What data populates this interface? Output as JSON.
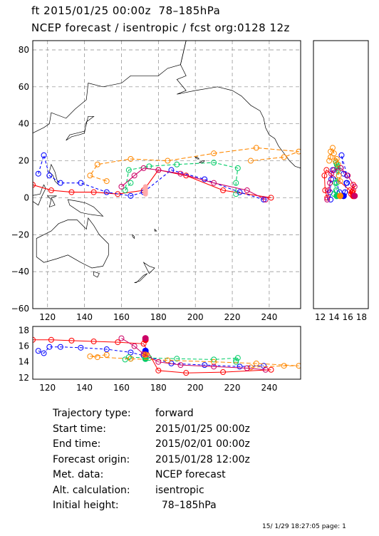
{
  "title": {
    "line1": "ft 2015/01/25 00:00z  78–185hPa",
    "line2": "NCEP forecast / isentropic / fcst org:0128 12z"
  },
  "map": {
    "lon_ticks": [
      "120",
      "140",
      "160",
      "180",
      "200",
      "220",
      "240"
    ],
    "lat_ticks": [
      "80",
      "60",
      "40",
      "20",
      "0",
      "−20",
      "−40",
      "−60"
    ],
    "lon_range": [
      112,
      257
    ],
    "lat_range": [
      -60,
      85
    ]
  },
  "side_panel": {
    "x_ticks": [
      "12",
      "14",
      "16",
      "18"
    ],
    "x_range": [
      11,
      19
    ]
  },
  "bottom_panel": {
    "y_ticks": [
      "18",
      "16",
      "14",
      "12"
    ],
    "y_range": [
      11.8,
      18.5
    ]
  },
  "colors": {
    "red": "#ff0000",
    "blue": "#0000ff",
    "green": "#00cc66",
    "orange": "#ff8800",
    "magenta": "#cc0066",
    "pink": "#ffaaaa",
    "grid": "#888888"
  },
  "trajectories": [
    {
      "color": "red",
      "dash": "",
      "points": [
        [
          112,
          7
        ],
        [
          122,
          4
        ],
        [
          133,
          3
        ],
        [
          145,
          3
        ],
        [
          158,
          2
        ],
        [
          172,
          4
        ],
        [
          180,
          15
        ],
        [
          195,
          12
        ],
        [
          215,
          4
        ],
        [
          241,
          0
        ]
      ],
      "z": [
        16.8,
        16.8,
        16.7,
        16.6,
        16.5,
        16.3,
        12.9,
        12.6,
        12.7,
        13.0
      ]
    },
    {
      "color": "blue",
      "dash": "4,3",
      "points": [
        [
          115,
          13
        ],
        [
          118,
          23
        ],
        [
          121,
          12
        ],
        [
          127,
          8
        ],
        [
          138,
          8
        ],
        [
          152,
          3
        ],
        [
          165,
          1
        ],
        [
          172,
          3
        ],
        [
          187,
          15
        ],
        [
          205,
          10
        ],
        [
          224,
          3
        ],
        [
          237,
          -1
        ]
      ],
      "z": [
        15.4,
        15.1,
        15.9,
        15.9,
        15.8,
        15.6,
        15.2,
        14.8,
        13.8,
        13.6,
        13.4,
        13.5
      ]
    },
    {
      "color": "green",
      "dash": "5,3",
      "points": [
        [
          165,
          8
        ],
        [
          162,
          4
        ],
        [
          164,
          15
        ],
        [
          175,
          17
        ],
        [
          190,
          18
        ],
        [
          210,
          19
        ],
        [
          223,
          16
        ],
        [
          222,
          8
        ],
        [
          222,
          2
        ]
      ],
      "z": [
        14.4,
        14.3,
        14.6,
        14.5,
        14.4,
        14.3,
        14.5,
        14.2,
        14.0
      ]
    },
    {
      "color": "orange",
      "dash": "6,3",
      "points": [
        [
          152,
          9
        ],
        [
          143,
          12
        ],
        [
          147,
          18
        ],
        [
          165,
          21
        ],
        [
          185,
          20
        ],
        [
          210,
          24
        ],
        [
          233,
          27
        ],
        [
          256,
          25
        ],
        [
          248,
          22
        ],
        [
          230,
          20
        ]
      ],
      "z": [
        14.9,
        14.7,
        14.6,
        14.4,
        14.2,
        14.0,
        13.8,
        13.5,
        13.5,
        13.3
      ]
    },
    {
      "color": "magenta",
      "dash": "",
      "points": [
        [
          160,
          6
        ],
        [
          167,
          12
        ],
        [
          172,
          16
        ],
        [
          180,
          15
        ],
        [
          192,
          13
        ],
        [
          210,
          8
        ],
        [
          228,
          4
        ],
        [
          238,
          -1
        ]
      ],
      "z": [
        17.0,
        16.0,
        15.0,
        14.0,
        13.6,
        13.4,
        13.2,
        13.0
      ]
    }
  ],
  "info": [
    {
      "label": "Trajectory type:",
      "value": "forward"
    },
    {
      "label": "Start time:",
      "value": "2015/01/25 00:00z"
    },
    {
      "label": "End time:",
      "value": "2015/02/01 00:00z"
    },
    {
      "label": "Forecast origin:",
      "value": "2015/01/28 12:00z"
    },
    {
      "label": "Met. data:",
      "value": "NCEP forecast"
    },
    {
      "label": "Alt. calculation:",
      "value": "isentropic"
    },
    {
      "label": "Initial height:",
      "value": "  78–185hPa"
    }
  ],
  "footer": "15/ 1/29 18:27:05 page: 1"
}
